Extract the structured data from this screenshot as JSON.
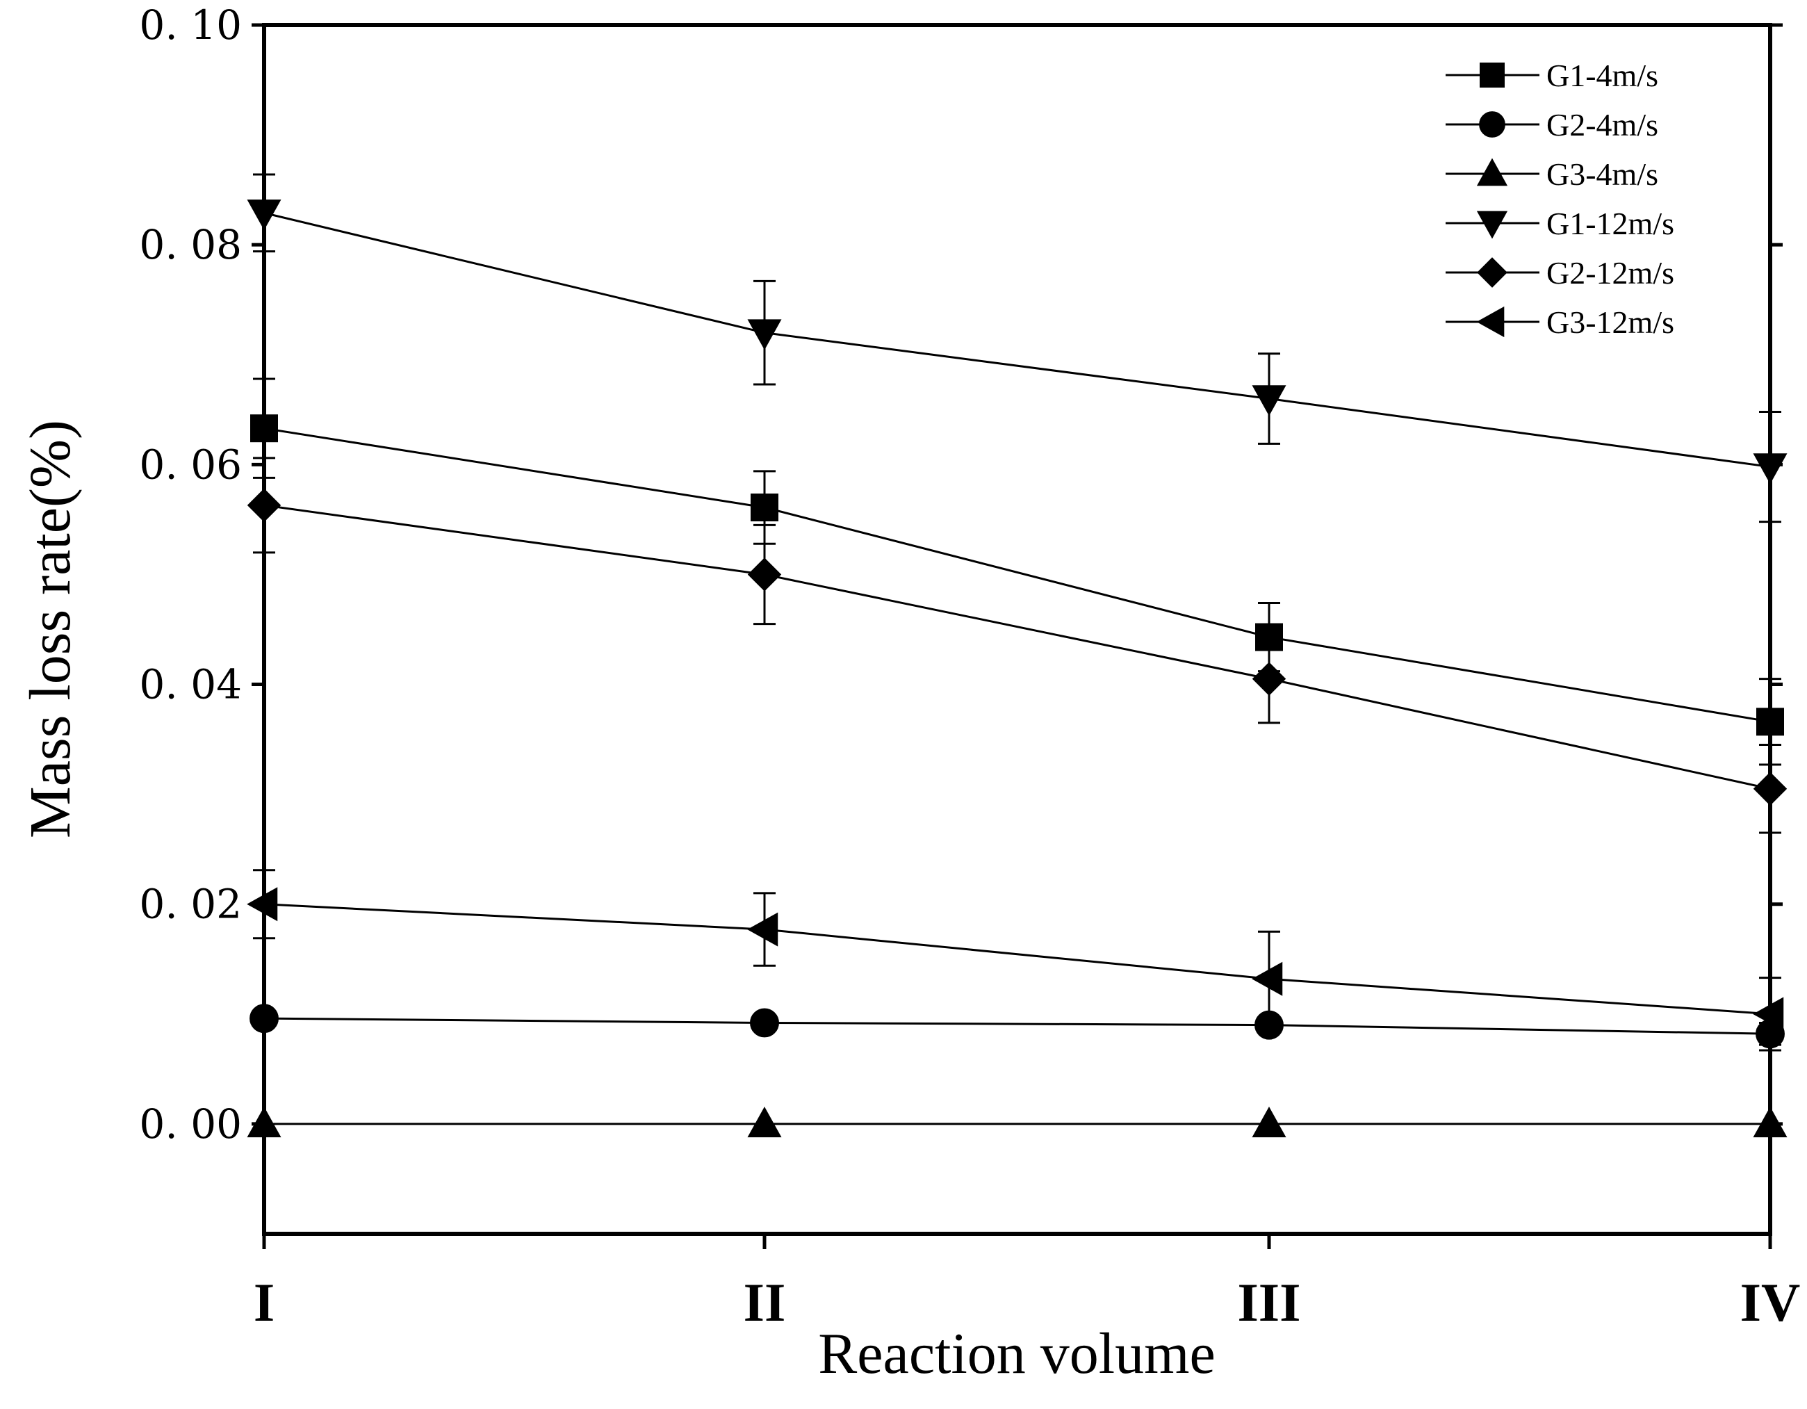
{
  "chart_data": {
    "type": "line",
    "title": "",
    "xlabel": "Reaction volume",
    "ylabel": "Mass loss rate(%)",
    "categories": [
      "I",
      "II",
      "III",
      "IV"
    ],
    "ylim": [
      -0.01,
      0.1
    ],
    "yticks": [
      0.0,
      0.02,
      0.04,
      0.06,
      0.08,
      0.1
    ],
    "ytick_labels": [
      "0. 00",
      "0. 02",
      "0. 04",
      "0. 06",
      "0. 08",
      "0. 10"
    ],
    "grid": false,
    "legend_position": "top-right",
    "series": [
      {
        "name": "G1-4m/s",
        "marker": "square",
        "values": [
          0.0633,
          0.0561,
          0.0443,
          0.0366
        ],
        "errors": [
          0.0045,
          0.0033,
          0.0031,
          0.0039
        ]
      },
      {
        "name": "G2-4m/s",
        "marker": "circle",
        "values": [
          0.0096,
          0.0092,
          0.009,
          0.0082
        ],
        "errors": [
          0.0,
          0.0,
          0.0,
          0.001
        ]
      },
      {
        "name": "G3-4m/s",
        "marker": "triangle-up",
        "values": [
          0.0,
          0.0,
          0.0,
          0.0
        ],
        "errors": [
          0.0,
          0.0,
          0.0,
          0.0
        ]
      },
      {
        "name": "G1-12m/s",
        "marker": "triangle-down",
        "values": [
          0.0829,
          0.072,
          0.066,
          0.0598
        ],
        "errors": [
          0.0035,
          0.0047,
          0.0041,
          0.005
        ]
      },
      {
        "name": "G2-12m/s",
        "marker": "diamond",
        "values": [
          0.0563,
          0.05,
          0.0405,
          0.0305
        ],
        "errors": [
          0.0043,
          0.0045,
          0.004,
          0.004
        ]
      },
      {
        "name": "G3-12m/s",
        "marker": "triangle-left",
        "values": [
          0.02,
          0.0177,
          0.0132,
          0.01
        ],
        "errors": [
          0.0031,
          0.0033,
          0.0043,
          0.0033
        ]
      }
    ]
  }
}
